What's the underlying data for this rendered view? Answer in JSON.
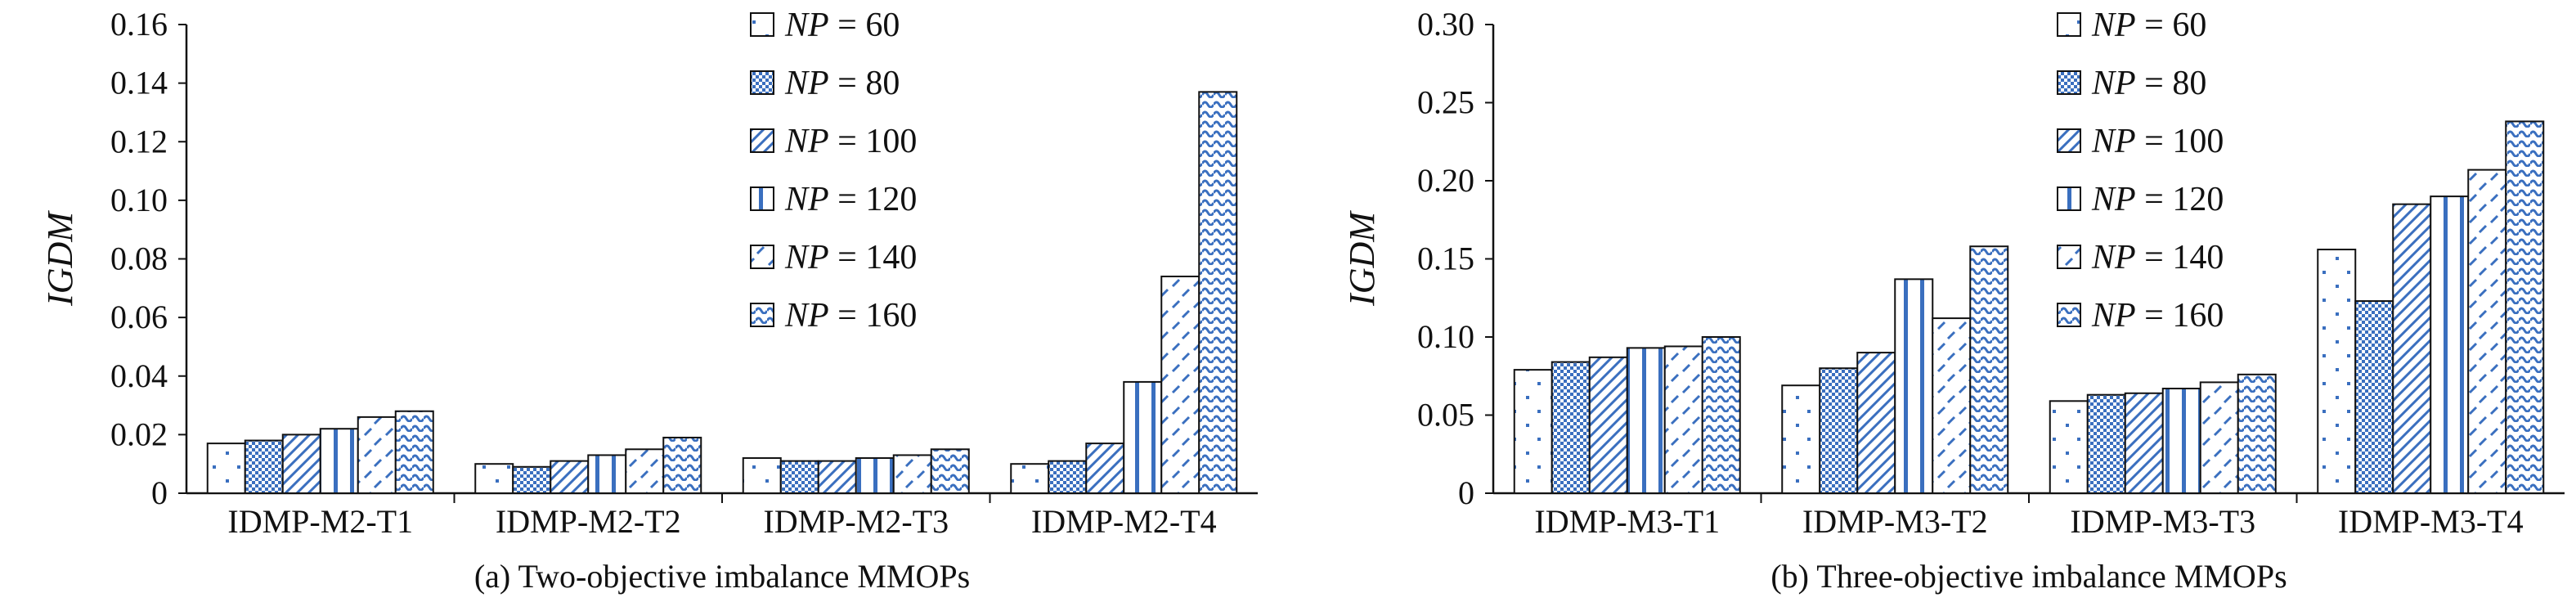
{
  "chart_data": [
    {
      "type": "bar",
      "caption": "(a) Two-objective imbalance MMOPs",
      "ylabel": "IGDM",
      "ylim": [
        0,
        0.16
      ],
      "yticks": [
        "0",
        "0.02",
        "0.04",
        "0.06",
        "0.08",
        "0.10",
        "0.12",
        "0.14",
        "0.16"
      ],
      "categories": [
        "IDMP-M2-T1",
        "IDMP-M2-T2",
        "IDMP-M2-T3",
        "IDMP-M2-T4"
      ],
      "legend_position": "top-right",
      "series": [
        {
          "np": "60",
          "values": [
            0.017,
            0.01,
            0.012,
            0.01
          ]
        },
        {
          "np": "80",
          "values": [
            0.018,
            0.009,
            0.011,
            0.011
          ]
        },
        {
          "np": "100",
          "values": [
            0.02,
            0.011,
            0.011,
            0.017
          ]
        },
        {
          "np": "120",
          "values": [
            0.022,
            0.013,
            0.012,
            0.038
          ]
        },
        {
          "np": "140",
          "values": [
            0.026,
            0.015,
            0.013,
            0.074
          ]
        },
        {
          "np": "160",
          "values": [
            0.028,
            0.019,
            0.015,
            0.137
          ]
        }
      ]
    },
    {
      "type": "bar",
      "caption": "(b) Three-objective imbalance MMOPs",
      "ylabel": "IGDM",
      "ylim": [
        0,
        0.3
      ],
      "yticks": [
        "0",
        "0.05",
        "0.10",
        "0.15",
        "0.20",
        "0.25",
        "0.30"
      ],
      "categories": [
        "IDMP-M3-T1",
        "IDMP-M3-T2",
        "IDMP-M3-T3",
        "IDMP-M3-T4"
      ],
      "legend_position": "top-right",
      "series": [
        {
          "np": "60",
          "values": [
            0.079,
            0.069,
            0.059,
            0.156
          ]
        },
        {
          "np": "80",
          "values": [
            0.084,
            0.08,
            0.063,
            0.123
          ]
        },
        {
          "np": "100",
          "values": [
            0.087,
            0.09,
            0.064,
            0.185
          ]
        },
        {
          "np": "120",
          "values": [
            0.093,
            0.137,
            0.067,
            0.19
          ]
        },
        {
          "np": "140",
          "values": [
            0.094,
            0.112,
            0.071,
            0.207
          ]
        },
        {
          "np": "160",
          "values": [
            0.1,
            0.158,
            0.076,
            0.238
          ]
        }
      ]
    }
  ],
  "legend_prefix": "NP",
  "legend_sep": " = ",
  "patterns": [
    "dots-sparse",
    "checker",
    "diagonal-wave",
    "vertical-stripe",
    "dash-diagonal",
    "wave-dense"
  ],
  "colors": {
    "axis": "#111111",
    "fill": "#3a6fbf",
    "bar_stroke": "#111111"
  }
}
